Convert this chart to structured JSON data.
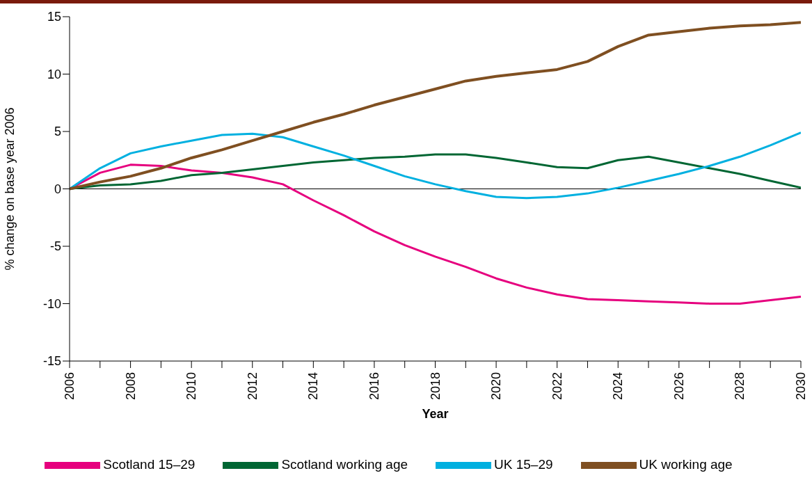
{
  "chart_data": {
    "type": "line",
    "xlabel": "Year",
    "ylabel": "% change on base year 2006",
    "x": [
      2006,
      2007,
      2008,
      2009,
      2010,
      2011,
      2012,
      2013,
      2014,
      2015,
      2016,
      2017,
      2018,
      2019,
      2020,
      2021,
      2022,
      2023,
      2024,
      2025,
      2026,
      2027,
      2028,
      2029,
      2030
    ],
    "series": [
      {
        "name": "Scotland 15–29",
        "color": "#e6007e",
        "values": [
          0,
          1.4,
          2.1,
          2.0,
          1.6,
          1.4,
          1.0,
          0.4,
          -1.0,
          -2.3,
          -3.7,
          -4.9,
          -5.9,
          -6.8,
          -7.8,
          -8.6,
          -9.2,
          -9.6,
          -9.7,
          -9.8,
          -9.9,
          -10.0,
          -10.0,
          -9.7,
          -9.4
        ]
      },
      {
        "name": "Scotland working age",
        "color": "#006633",
        "values": [
          0,
          0.3,
          0.4,
          0.7,
          1.2,
          1.4,
          1.7,
          2.0,
          2.3,
          2.5,
          2.7,
          2.8,
          3.0,
          3.0,
          2.7,
          2.3,
          1.9,
          1.8,
          2.5,
          2.8,
          2.3,
          1.8,
          1.3,
          0.7,
          0.1
        ]
      },
      {
        "name": "UK 15–29",
        "color": "#00b0e0",
        "values": [
          0,
          1.8,
          3.1,
          3.7,
          4.2,
          4.7,
          4.8,
          4.5,
          3.7,
          2.9,
          2.0,
          1.1,
          0.4,
          -0.2,
          -0.7,
          -0.8,
          -0.7,
          -0.4,
          0.1,
          0.7,
          1.3,
          2.0,
          2.8,
          3.8,
          4.9
        ]
      },
      {
        "name": "UK working age",
        "color": "#7f4f21",
        "values": [
          0,
          0.6,
          1.1,
          1.8,
          2.7,
          3.4,
          4.2,
          5.0,
          5.8,
          6.5,
          7.3,
          8.0,
          8.7,
          9.4,
          9.8,
          10.1,
          10.4,
          11.1,
          12.4,
          13.4,
          13.7,
          14.0,
          14.2,
          14.3,
          14.5
        ]
      }
    ],
    "xlim": [
      2006,
      2030
    ],
    "xticks": [
      2006,
      {
        "value": 2007,
        "label": null
      },
      2008,
      {
        "value": 2009,
        "label": null
      },
      2010,
      {
        "value": 2011,
        "label": null
      },
      2012,
      {
        "value": 2013,
        "label": null
      },
      2014,
      {
        "value": 2015,
        "label": null
      },
      2016,
      {
        "value": 2017,
        "label": null
      },
      2018,
      {
        "value": 2019,
        "label": null
      },
      2020,
      {
        "value": 2021,
        "label": null
      },
      2022,
      {
        "value": 2023,
        "label": null
      },
      2024,
      {
        "value": 2025,
        "label": null
      },
      2026,
      {
        "value": 2027,
        "label": null
      },
      2028,
      {
        "value": 2029,
        "label": null
      },
      2030
    ],
    "ylim": [
      -15,
      15
    ],
    "yticks": [
      -15,
      -10,
      -5,
      0,
      5,
      10,
      15
    ],
    "ref_lines": [
      {
        "axis": "y",
        "value": 0,
        "color": "#000000"
      }
    ],
    "grid": false,
    "legend": "bottom",
    "marker": "none",
    "line_style": "solid"
  }
}
